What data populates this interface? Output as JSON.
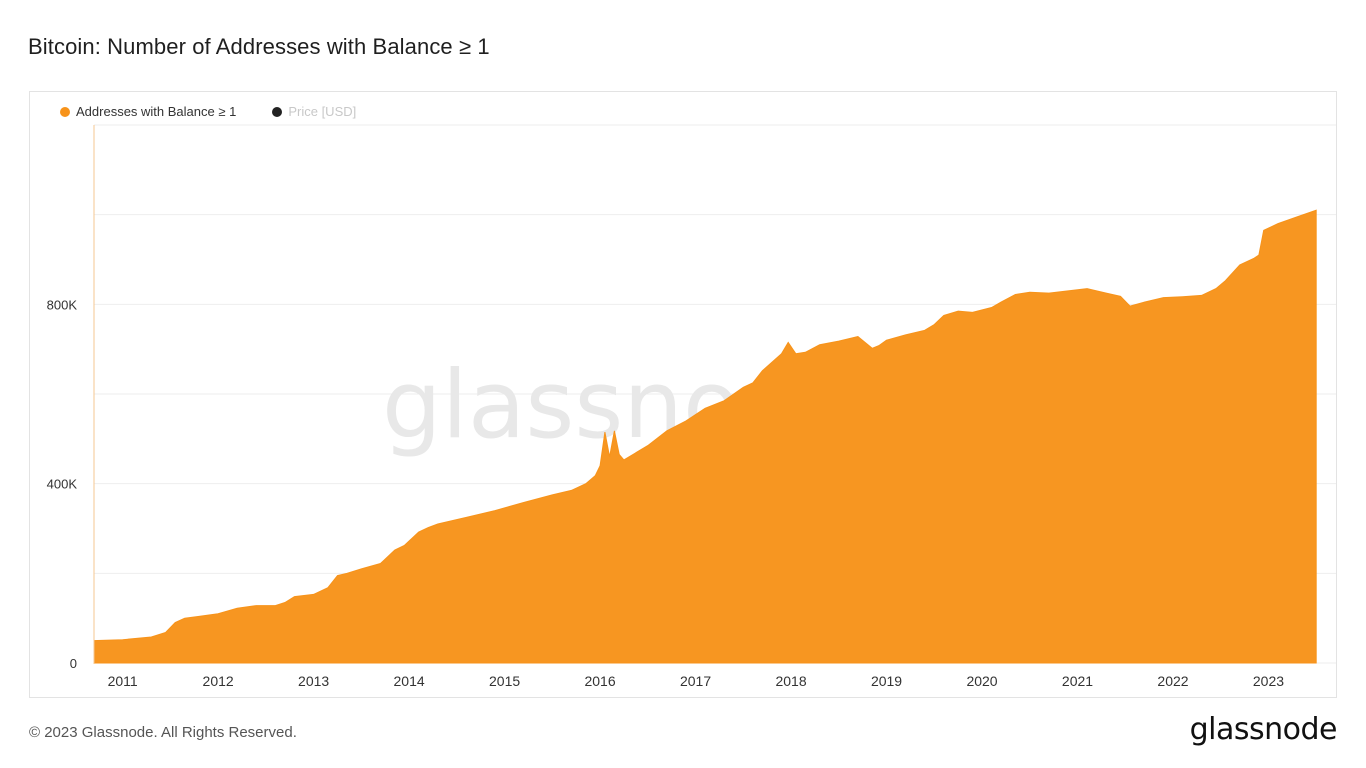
{
  "title": "Bitcoin: Number of Addresses with Balance ≥ 1",
  "legend": [
    {
      "label": "Addresses with Balance ≥ 1",
      "color": "#f7931a",
      "active": true
    },
    {
      "label": "Price [USD]",
      "color": "#222222",
      "active": false
    }
  ],
  "watermark": "glassnode",
  "footer": "© 2023 Glassnode. All Rights Reserved.",
  "brand": "glassnode",
  "colors": {
    "series": "#f7931a",
    "grid": "#eeeeee",
    "watermark": "#e8e8e8",
    "axis_text": "#333333"
  },
  "chart_data": {
    "type": "area",
    "title": "Bitcoin: Number of Addresses with Balance ≥ 1",
    "ylabel": "",
    "xlabel": "",
    "ylim": [
      0,
      1200000
    ],
    "xlim": [
      2010.7,
      2023.55
    ],
    "y_ticks": [
      {
        "value": 0,
        "label": "0"
      },
      {
        "value": 200000,
        "label": ""
      },
      {
        "value": 400000,
        "label": "400K"
      },
      {
        "value": 600000,
        "label": ""
      },
      {
        "value": 800000,
        "label": "800K"
      },
      {
        "value": 1000000,
        "label": ""
      },
      {
        "value": 1200000,
        "label": ""
      }
    ],
    "x_ticks": [
      {
        "value": 2011,
        "label": "2011"
      },
      {
        "value": 2012,
        "label": "2012"
      },
      {
        "value": 2013,
        "label": "2013"
      },
      {
        "value": 2014,
        "label": "2014"
      },
      {
        "value": 2015,
        "label": "2015"
      },
      {
        "value": 2016,
        "label": "2016"
      },
      {
        "value": 2017,
        "label": "2017"
      },
      {
        "value": 2018,
        "label": "2018"
      },
      {
        "value": 2019,
        "label": "2019"
      },
      {
        "value": 2020,
        "label": "2020"
      },
      {
        "value": 2021,
        "label": "2021"
      },
      {
        "value": 2022,
        "label": "2022"
      },
      {
        "value": 2023,
        "label": "2023"
      }
    ],
    "grid": true,
    "legend_position": "top-left",
    "series": [
      {
        "name": "Addresses with Balance ≥ 1",
        "color": "#f7931a",
        "x": [
          2010.7,
          2011.0,
          2011.3,
          2011.45,
          2011.55,
          2011.65,
          2011.8,
          2012.0,
          2012.2,
          2012.4,
          2012.6,
          2012.7,
          2012.8,
          2013.0,
          2013.15,
          2013.25,
          2013.35,
          2013.5,
          2013.7,
          2013.85,
          2013.95,
          2014.1,
          2014.2,
          2014.3,
          2014.6,
          2014.9,
          2015.2,
          2015.5,
          2015.7,
          2015.85,
          2015.95,
          2016.0,
          2016.05,
          2016.1,
          2016.15,
          2016.2,
          2016.25,
          2016.5,
          2016.7,
          2016.9,
          2017.1,
          2017.3,
          2017.5,
          2017.6,
          2017.7,
          2017.9,
          2017.97,
          2018.05,
          2018.15,
          2018.3,
          2018.5,
          2018.7,
          2018.85,
          2018.92,
          2019.0,
          2019.2,
          2019.4,
          2019.5,
          2019.6,
          2019.75,
          2019.9,
          2020.1,
          2020.2,
          2020.35,
          2020.5,
          2020.7,
          2020.9,
          2021.1,
          2021.3,
          2021.45,
          2021.55,
          2021.7,
          2021.9,
          2022.1,
          2022.3,
          2022.45,
          2022.55,
          2022.7,
          2022.85,
          2022.9,
          2022.95,
          2023.1,
          2023.3,
          2023.5
        ],
        "values": [
          50000,
          52000,
          58000,
          68000,
          90000,
          100000,
          104000,
          110000,
          122000,
          128000,
          128000,
          135000,
          148000,
          153000,
          168000,
          195000,
          200000,
          210000,
          222000,
          252000,
          262000,
          292000,
          302000,
          310000,
          325000,
          340000,
          358000,
          375000,
          385000,
          400000,
          418000,
          440000,
          515000,
          460000,
          518000,
          465000,
          453000,
          485000,
          518000,
          540000,
          568000,
          585000,
          615000,
          625000,
          652000,
          690000,
          715000,
          690000,
          693000,
          710000,
          718000,
          728000,
          702000,
          708000,
          720000,
          732000,
          742000,
          755000,
          775000,
          785000,
          782000,
          793000,
          805000,
          822000,
          827000,
          825000,
          830000,
          835000,
          825000,
          818000,
          796000,
          805000,
          815000,
          817000,
          820000,
          835000,
          853000,
          888000,
          903000,
          910000,
          965000,
          980000,
          995000,
          1010000
        ]
      }
    ]
  }
}
